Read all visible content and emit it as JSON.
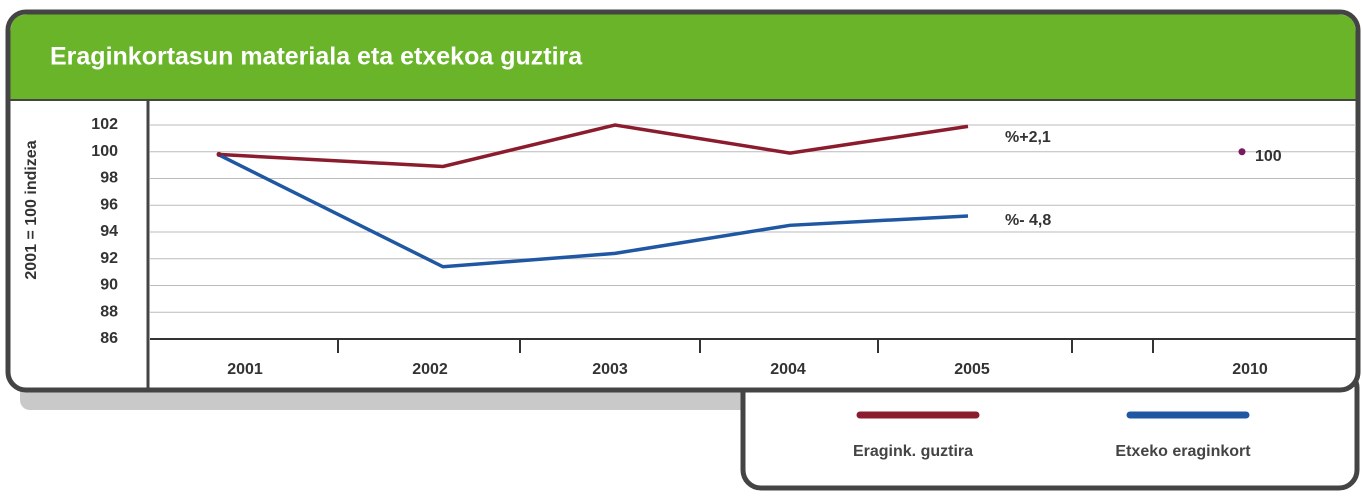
{
  "chart_data": {
    "type": "line",
    "title": "Eraginkortasun materiala eta etxekoa guztira",
    "y_label": "2001 = 100 indizea",
    "categories": [
      "2001",
      "2002",
      "2003",
      "2004",
      "2005",
      null,
      "2010"
    ],
    "series": [
      {
        "name": "Eragink. guztira",
        "color": "#8b1c2e",
        "values": [
          99.8,
          98.9,
          102,
          99.9,
          101.9,
          null,
          null
        ]
      },
      {
        "name": "Etxeko eraginkort",
        "color": "#1f57a3",
        "values": [
          99.8,
          91.4,
          92.4,
          94.5,
          95.2,
          null,
          null
        ]
      }
    ],
    "annotations": [
      "%+2,1",
      "%- 4,8"
    ],
    "target": {
      "value": 100,
      "color": "#7a1860"
    },
    "ylim": [
      86,
      102
    ],
    "yticks": [
      86,
      88,
      90,
      92,
      94,
      96,
      98,
      100,
      102
    ],
    "grid": true
  }
}
